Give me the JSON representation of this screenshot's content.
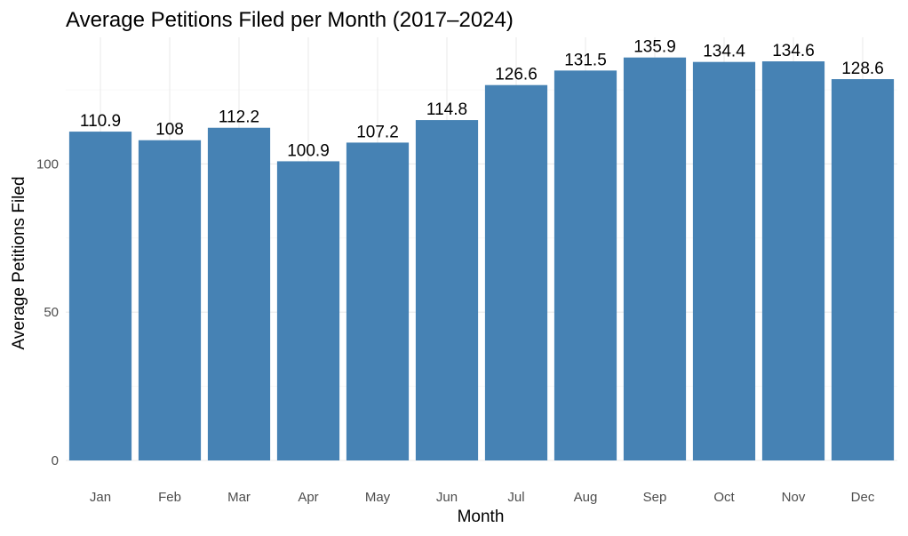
{
  "chart_data": {
    "type": "bar",
    "title": "Average Petitions Filed per Month (2017–2024)",
    "xlabel": "Month",
    "ylabel": "Average Petitions Filed",
    "categories": [
      "Jan",
      "Feb",
      "Mar",
      "Apr",
      "May",
      "Jun",
      "Jul",
      "Aug",
      "Sep",
      "Oct",
      "Nov",
      "Dec"
    ],
    "values": [
      110.9,
      108,
      112.2,
      100.9,
      107.2,
      114.8,
      126.6,
      131.5,
      135.9,
      134.4,
      134.6,
      128.6
    ],
    "data_labels": [
      "110.9",
      "108",
      "112.2",
      "100.9",
      "107.2",
      "114.8",
      "126.6",
      "131.5",
      "135.9",
      "134.4",
      "134.6",
      "128.6"
    ],
    "ylim": [
      0,
      142.7
    ],
    "yticks": [
      0,
      50,
      100
    ],
    "ytick_labels": [
      "0",
      "50",
      "100"
    ],
    "grid": true,
    "bar_color": "#4682b4",
    "background": "#ffffff"
  }
}
